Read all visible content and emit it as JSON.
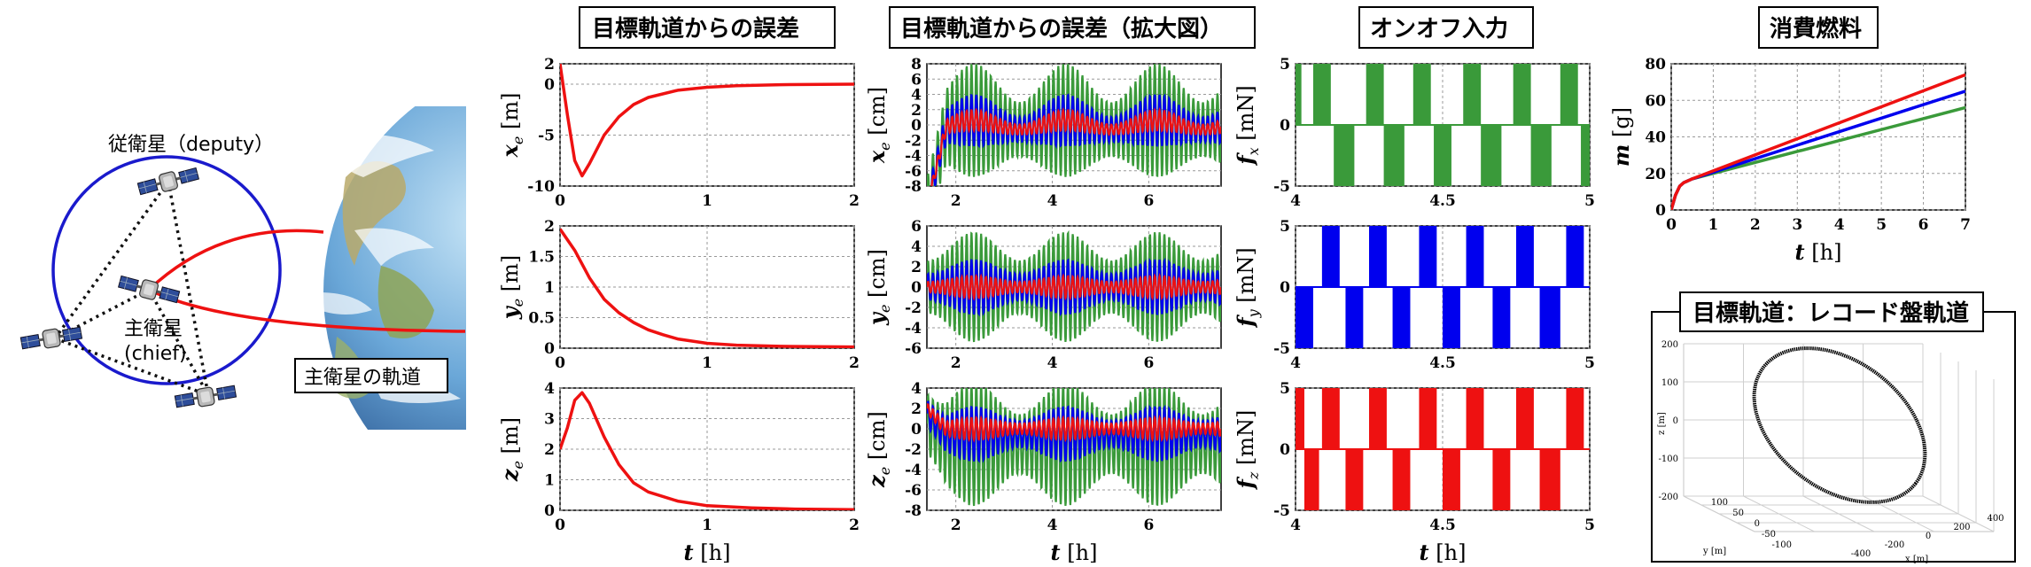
{
  "illustration": {
    "deputy_label": "従衛星（deputy）",
    "chief_label_jp": "主衛星",
    "chief_label_en": "(chief)",
    "orbit_label": "主衛星の軌道"
  },
  "titles": {
    "col1": "目標軌道からの誤差",
    "col2": "目標軌道からの誤差（拡大図）",
    "col3": "オンオフ入力",
    "col4": "消費燃料",
    "col5": "目標軌道：レコード盤軌道"
  },
  "colors": {
    "green": "#3a9a3a",
    "blue": "#0000ee",
    "red": "#ee1111",
    "orbit": "#1a1acc"
  },
  "chart_data": [
    {
      "id": "xe",
      "type": "line",
      "xlabel": "",
      "ylabel": "x_e [m]",
      "xlim": [
        0,
        2
      ],
      "ylim": [
        -10,
        2
      ],
      "xticks": [
        "0",
        "1",
        "2"
      ],
      "yticks": [
        "2",
        "0",
        "-5",
        "-10"
      ],
      "series": [
        {
          "color": "red",
          "x": [
            0,
            0.05,
            0.1,
            0.15,
            0.2,
            0.3,
            0.4,
            0.5,
            0.6,
            0.8,
            1.0,
            1.2,
            1.5,
            2.0
          ],
          "y": [
            2,
            -3,
            -7.5,
            -9,
            -7.8,
            -5,
            -3.2,
            -2.0,
            -1.3,
            -0.6,
            -0.3,
            -0.15,
            -0.05,
            0
          ]
        }
      ]
    },
    {
      "id": "ye",
      "type": "line",
      "xlabel": "",
      "ylabel": "y_e [m]",
      "xlim": [
        0,
        2
      ],
      "ylim": [
        0,
        2
      ],
      "xticks": [
        "0",
        "1",
        "2"
      ],
      "yticks": [
        "2",
        "1.5",
        "1",
        "0.5",
        "0"
      ],
      "series": [
        {
          "color": "red",
          "x": [
            0,
            0.1,
            0.2,
            0.3,
            0.4,
            0.5,
            0.6,
            0.7,
            0.8,
            1.0,
            1.2,
            1.5,
            2.0
          ],
          "y": [
            1.95,
            1.6,
            1.15,
            0.8,
            0.58,
            0.42,
            0.3,
            0.22,
            0.15,
            0.08,
            0.05,
            0.03,
            0.02
          ]
        }
      ]
    },
    {
      "id": "ze",
      "type": "line",
      "xlabel": "t [h]",
      "ylabel": "z_e [m]",
      "xlim": [
        0,
        2
      ],
      "ylim": [
        0,
        4
      ],
      "xticks": [
        "0",
        "1",
        "2"
      ],
      "yticks": [
        "4",
        "3",
        "2",
        "1",
        "0"
      ],
      "series": [
        {
          "color": "red",
          "x": [
            0,
            0.05,
            0.1,
            0.15,
            0.2,
            0.3,
            0.4,
            0.5,
            0.6,
            0.8,
            1.0,
            1.3,
            1.6,
            2.0
          ],
          "y": [
            2,
            2.7,
            3.6,
            3.85,
            3.5,
            2.4,
            1.5,
            0.9,
            0.6,
            0.3,
            0.15,
            0.08,
            0.04,
            0.02
          ]
        }
      ]
    },
    {
      "id": "xe_zoom",
      "type": "line",
      "xlabel": "",
      "ylabel": "x_e [cm]",
      "xlim": [
        1.4,
        7.5
      ],
      "ylim": [
        -8,
        8
      ],
      "xticks": [
        "2",
        "4",
        "6"
      ],
      "yticks": [
        "8",
        "6",
        "4",
        "2",
        "0",
        "-2",
        "-4",
        "-6",
        "-8"
      ],
      "series": [
        {
          "color": "green",
          "name": "",
          "center": 0,
          "amp": 5.5,
          "freq": 10,
          "slow": 0.6
        },
        {
          "color": "blue",
          "name": "",
          "center": 0,
          "amp": 2.5,
          "freq": 10,
          "slow": 0.6
        },
        {
          "color": "red",
          "name": "",
          "center": 0,
          "amp": 1.0,
          "freq": 10,
          "slow": 0.6
        }
      ]
    },
    {
      "id": "ye_zoom",
      "type": "line",
      "xlabel": "",
      "ylabel": "y_e [cm]",
      "xlim": [
        1.4,
        7.5
      ],
      "ylim": [
        -6,
        6
      ],
      "xticks": [
        "2",
        "4",
        "6"
      ],
      "yticks": [
        "6",
        "4",
        "2",
        "0",
        "-2",
        "-4",
        "-6"
      ],
      "series": [
        {
          "color": "green",
          "center": 0,
          "amp": 4.0,
          "freq": 10,
          "slow": 0
        },
        {
          "color": "blue",
          "center": 0,
          "amp": 2.0,
          "freq": 10,
          "slow": 0
        },
        {
          "color": "red",
          "center": 0,
          "amp": 0.8,
          "freq": 10,
          "slow": 0
        }
      ]
    },
    {
      "id": "ze_zoom",
      "type": "line",
      "xlabel": "t [h]",
      "ylabel": "z_e [cm]",
      "xlim": [
        1.4,
        7.5
      ],
      "ylim": [
        -8,
        4
      ],
      "xticks": [
        "2",
        "4",
        "6"
      ],
      "yticks": [
        "4",
        "2",
        "0",
        "-2",
        "-4",
        "-6",
        "-8"
      ],
      "series": [
        {
          "color": "green",
          "center": -1.5,
          "amp": 4.5,
          "freq": 10,
          "slow": 0
        },
        {
          "color": "blue",
          "center": -0.5,
          "amp": 2.0,
          "freq": 10,
          "slow": 0
        },
        {
          "color": "red",
          "center": 0,
          "amp": 0.8,
          "freq": 10,
          "slow": 0
        }
      ]
    },
    {
      "id": "fx1",
      "type": "area",
      "xlabel": "",
      "ylabel": "f_x [mN]",
      "xlim": [
        4,
        5
      ],
      "ylim": [
        -5,
        5
      ],
      "xticks": [
        "4",
        "4.5",
        "5"
      ],
      "yticks": [
        "5",
        "0",
        "-5"
      ],
      "series": [
        {
          "color": "green",
          "on": [
            [
              4.0,
              4.02
            ],
            [
              4.06,
              4.12
            ],
            [
              4.24,
              4.3
            ],
            [
              4.4,
              4.46
            ],
            [
              4.57,
              4.63
            ],
            [
              4.74,
              4.8
            ],
            [
              4.9,
              4.96
            ]
          ],
          "off": [
            [
              4.13,
              4.2
            ],
            [
              4.3,
              4.37
            ],
            [
              4.47,
              4.53
            ],
            [
              4.63,
              4.7
            ],
            [
              4.8,
              4.87
            ],
            [
              4.97,
              5.0
            ]
          ]
        }
      ]
    },
    {
      "id": "fx2",
      "type": "area",
      "xlabel": "",
      "ylabel": "f_y [mN]",
      "xlim": [
        4,
        5
      ],
      "ylim": [
        -5,
        5
      ],
      "xticks": [
        "4",
        "4.5",
        "5"
      ],
      "yticks": [
        "5",
        "0",
        "-5"
      ],
      "series": [
        {
          "color": "blue",
          "on": [
            [
              4.09,
              4.15
            ],
            [
              4.25,
              4.31
            ],
            [
              4.42,
              4.48
            ],
            [
              4.58,
              4.64
            ],
            [
              4.75,
              4.81
            ],
            [
              4.92,
              4.98
            ]
          ],
          "off": [
            [
              4.0,
              4.06
            ],
            [
              4.17,
              4.23
            ],
            [
              4.33,
              4.39
            ],
            [
              4.5,
              4.56
            ],
            [
              4.67,
              4.73
            ],
            [
              4.83,
              4.9
            ]
          ]
        }
      ]
    },
    {
      "id": "fx3",
      "type": "area",
      "xlabel": "t [h]",
      "ylabel": "f_z [mN]",
      "xlim": [
        4,
        5
      ],
      "ylim": [
        -5,
        5
      ],
      "xticks": [
        "4",
        "4.5",
        "5"
      ],
      "yticks": [
        "5",
        "0",
        "-5"
      ],
      "series": [
        {
          "color": "red",
          "on": [
            [
              4.0,
              4.03
            ],
            [
              4.09,
              4.15
            ],
            [
              4.25,
              4.31
            ],
            [
              4.42,
              4.48
            ],
            [
              4.58,
              4.64
            ],
            [
              4.75,
              4.81
            ],
            [
              4.92,
              4.98
            ]
          ],
          "off": [
            [
              4.03,
              4.08
            ],
            [
              4.17,
              4.23
            ],
            [
              4.33,
              4.39
            ],
            [
              4.5,
              4.56
            ],
            [
              4.67,
              4.73
            ],
            [
              4.83,
              4.9
            ]
          ]
        }
      ]
    },
    {
      "id": "fuel",
      "type": "line",
      "xlabel": "t [h]",
      "ylabel": "m [g]",
      "xlim": [
        0,
        7
      ],
      "ylim": [
        0,
        80
      ],
      "xticks": [
        "0",
        "1",
        "2",
        "3",
        "4",
        "5",
        "6",
        "7"
      ],
      "yticks": [
        "80",
        "60",
        "40",
        "20",
        "0"
      ],
      "series": [
        {
          "color": "green",
          "x": [
            0,
            0.1,
            0.2,
            0.3,
            0.5,
            7
          ],
          "y": [
            0,
            8,
            13,
            15,
            17,
            56
          ]
        },
        {
          "color": "blue",
          "x": [
            0,
            0.1,
            0.2,
            0.3,
            0.5,
            7
          ],
          "y": [
            0,
            8,
            13,
            15,
            17,
            65
          ]
        },
        {
          "color": "red",
          "x": [
            0,
            0.1,
            0.2,
            0.3,
            0.5,
            7
          ],
          "y": [
            0,
            8,
            13,
            15,
            17,
            74
          ]
        }
      ]
    },
    {
      "id": "orbit3d",
      "type": "scatter",
      "zlabel": "z [m]",
      "ylabel": "y [m]",
      "xlabel": "x [m]",
      "zticks": [
        "200",
        "100",
        "0",
        "-100",
        "-200"
      ],
      "yticks": [
        "100",
        "50",
        "0",
        "-50",
        "-100"
      ],
      "xticks": [
        "-400",
        "-200",
        "0",
        "200",
        "400"
      ]
    }
  ]
}
